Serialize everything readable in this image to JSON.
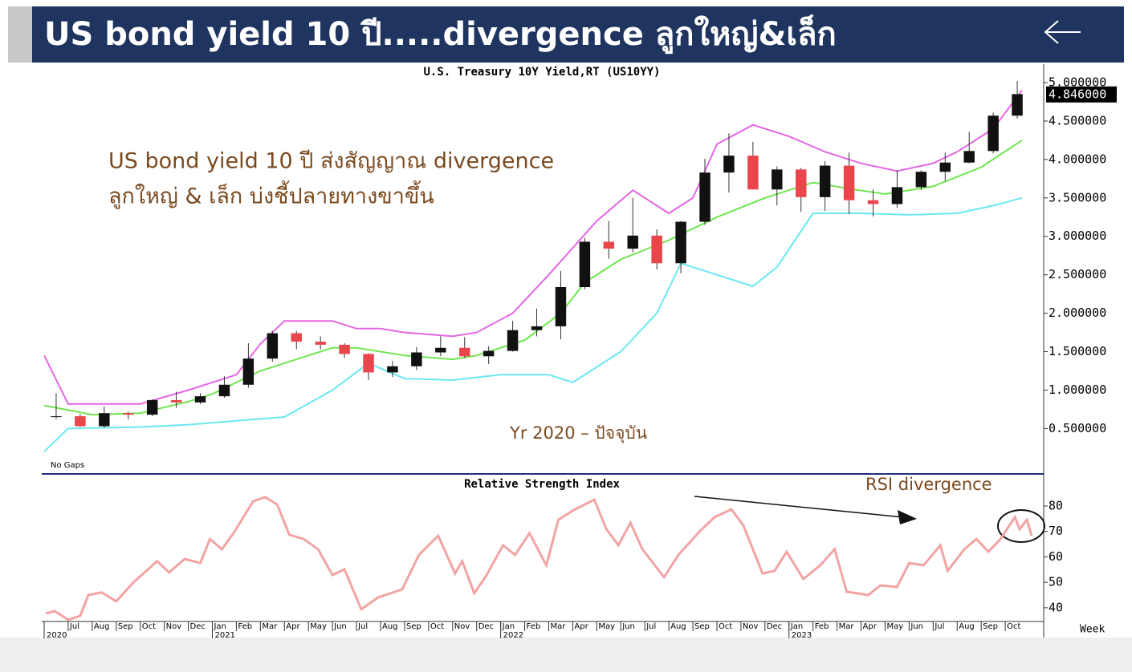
{
  "header": {
    "title": "US bond yield 10 ปี.....divergence ลูกใหญ่&เล็ก"
  },
  "chart_data": [
    {
      "type": "candlestick",
      "title": "U.S. Treasury 10Y Yield,RT (US10YY)",
      "x": [
        0.5,
        1.5,
        2.5,
        3.5,
        4.5,
        5.5,
        6.5,
        7.5,
        8.5,
        9.5,
        10.5,
        11.5,
        12.5,
        13.5,
        14.5,
        15.5,
        16.5,
        17.5,
        18.5,
        19.5,
        20.5,
        21.5,
        22.5,
        23.5,
        24.5,
        25.5,
        26.5,
        27.5,
        28.5,
        29.5,
        30.5,
        31.5,
        32.5,
        33.5,
        34.5,
        35.5,
        36.5,
        37.5,
        38.5,
        39.5,
        40.5
      ],
      "open": [
        0.65,
        0.66,
        0.53,
        0.7,
        0.68,
        0.87,
        0.84,
        0.92,
        1.07,
        1.41,
        1.74,
        1.63,
        1.59,
        1.47,
        1.23,
        1.31,
        1.49,
        1.55,
        1.44,
        1.51,
        1.78,
        1.83,
        2.34,
        2.93,
        2.84,
        3.01,
        2.65,
        3.19,
        3.83,
        4.05,
        3.61,
        3.87,
        3.51,
        3.92,
        3.47,
        3.42,
        3.64,
        3.84,
        3.96,
        4.11,
        4.57
      ],
      "high": [
        0.96,
        0.69,
        0.79,
        0.72,
        0.88,
        0.98,
        0.96,
        1.18,
        1.61,
        1.77,
        1.77,
        1.7,
        1.61,
        1.48,
        1.38,
        1.56,
        1.7,
        1.69,
        1.57,
        1.9,
        2.06,
        2.55,
        2.98,
        3.2,
        3.5,
        3.09,
        3.2,
        4.01,
        4.34,
        4.23,
        3.91,
        3.89,
        3.98,
        4.09,
        3.61,
        3.86,
        3.86,
        4.09,
        4.36,
        4.61,
        5.02
      ],
      "low": [
        0.62,
        0.52,
        0.51,
        0.62,
        0.66,
        0.77,
        0.82,
        0.9,
        1.03,
        1.37,
        1.53,
        1.53,
        1.42,
        1.13,
        1.17,
        1.26,
        1.44,
        1.42,
        1.34,
        1.5,
        1.7,
        1.66,
        2.31,
        2.71,
        2.79,
        2.57,
        2.52,
        3.15,
        3.57,
        3.61,
        3.4,
        3.32,
        3.33,
        3.29,
        3.26,
        3.37,
        3.6,
        3.72,
        3.95,
        4.08,
        4.53
      ],
      "close": [
        0.66,
        0.53,
        0.7,
        0.68,
        0.87,
        0.84,
        0.92,
        1.07,
        1.41,
        1.74,
        1.63,
        1.59,
        1.47,
        1.23,
        1.31,
        1.49,
        1.55,
        1.44,
        1.51,
        1.78,
        1.83,
        2.34,
        2.93,
        2.84,
        3.01,
        2.65,
        3.19,
        3.83,
        4.05,
        3.61,
        3.87,
        3.51,
        3.92,
        3.47,
        3.42,
        3.64,
        3.84,
        3.96,
        4.11,
        4.57,
        4.85
      ],
      "up_color": "#111111",
      "down_color": "#e8464a",
      "series": [
        {
          "color": "#e466e4",
          "x": [
            0,
            1,
            4,
            6,
            8,
            9,
            10,
            12,
            13,
            14,
            15,
            17,
            18,
            19.5,
            21,
            23,
            24.5,
            26,
            27,
            28,
            29.5,
            31,
            32.5,
            34,
            35.5,
            37,
            38,
            39.5,
            40.7
          ],
          "values": [
            1.45,
            0.82,
            0.82,
            1.0,
            1.2,
            1.6,
            1.9,
            1.9,
            1.8,
            1.8,
            1.75,
            1.7,
            1.75,
            2.0,
            2.5,
            3.2,
            3.6,
            3.3,
            3.5,
            4.2,
            4.45,
            4.3,
            4.1,
            3.95,
            3.85,
            3.95,
            4.1,
            4.4,
            4.9
          ]
        },
        {
          "color": "#6ee64e",
          "x": [
            0,
            2,
            4,
            6,
            7,
            9,
            12,
            13,
            15,
            17,
            18,
            20,
            21.5,
            22.5,
            24,
            26,
            28,
            30,
            32,
            33.5,
            35,
            37,
            39,
            40.7
          ],
          "values": [
            0.8,
            0.68,
            0.7,
            0.85,
            0.95,
            1.25,
            1.55,
            1.55,
            1.45,
            1.4,
            1.45,
            1.65,
            2.0,
            2.4,
            2.7,
            2.95,
            3.25,
            3.5,
            3.7,
            3.62,
            3.55,
            3.65,
            3.9,
            4.25
          ]
        },
        {
          "color": "#6ae8f2",
          "x": [
            0,
            1,
            4,
            6,
            8,
            10,
            12,
            13.5,
            15,
            17,
            19,
            21,
            22,
            24,
            25.5,
            26.5,
            28,
            29.5,
            30.5,
            32,
            34,
            36,
            38,
            39.5,
            40.7
          ],
          "values": [
            0.2,
            0.5,
            0.52,
            0.55,
            0.6,
            0.65,
            1.0,
            1.35,
            1.15,
            1.13,
            1.2,
            1.2,
            1.1,
            1.5,
            2.0,
            2.65,
            2.5,
            2.35,
            2.6,
            3.3,
            3.3,
            3.28,
            3.3,
            3.4,
            3.5
          ]
        }
      ],
      "last_price": {
        "value": 4.846,
        "label": "4.846000"
      },
      "xlim": [
        -0.1,
        41.6
      ],
      "ylim": [
        -0.08,
        5.24
      ],
      "yticks": [
        {
          "value": 0.5,
          "label": "0.500000"
        },
        {
          "value": 1.0,
          "label": "1.000000"
        },
        {
          "value": 1.5,
          "label": "1.500000"
        },
        {
          "value": 2.0,
          "label": "2.000000"
        },
        {
          "value": 2.5,
          "label": "2.500000"
        },
        {
          "value": 3.0,
          "label": "3.000000"
        },
        {
          "value": 3.5,
          "label": "3.500000"
        },
        {
          "value": 4.0,
          "label": "4.000000"
        },
        {
          "value": 4.5,
          "label": "4.500000"
        },
        {
          "value": 5.0,
          "label": "5.000000"
        }
      ],
      "annotations": [
        "US bond yield 10 ปี ส่งสัญญาณ divergence",
        "ลูกใหญ่ & เล็ก บ่งชี้ปลายทางขาขึ้น"
      ],
      "note": "Yr 2020 – ปัจจุบัน",
      "gaps": "No Gaps"
    },
    {
      "type": "line",
      "title": "Relative Strength Index",
      "series": [
        {
          "color": "#f2a4a4",
          "x": [
            0.07,
            0.43,
            1.0,
            1.5,
            1.84,
            2.4,
            3.0,
            3.7,
            4.7,
            5.2,
            5.85,
            6.5,
            6.9,
            7.4,
            7.9,
            8.7,
            9.2,
            9.7,
            10.2,
            10.8,
            11.4,
            12.0,
            12.5,
            13.2,
            13.9,
            14.9,
            15.6,
            16.4,
            17.1,
            17.4,
            17.9,
            18.4,
            19.1,
            19.6,
            20.2,
            20.9,
            21.4,
            22.1,
            22.9,
            23.4,
            23.9,
            24.4,
            24.9,
            25.8,
            26.4,
            27.3,
            27.9,
            28.6,
            29.1,
            29.9,
            30.4,
            30.9,
            31.6,
            32.3,
            32.9,
            33.4,
            34.3,
            34.8,
            35.5,
            36.0,
            36.6,
            37.3,
            37.6,
            38.3,
            38.8,
            39.3,
            39.8,
            40.4,
            40.6,
            40.9,
            41.1
          ],
          "values": [
            37.8,
            38.7,
            35.3,
            36.8,
            45,
            46,
            42.5,
            49.8,
            58.3,
            53.9,
            59.2,
            57.6,
            67,
            63,
            69.6,
            81.9,
            83.5,
            80.6,
            68.7,
            67,
            63,
            52.9,
            55.1,
            39.4,
            44.1,
            47.2,
            60.8,
            68.3,
            53.5,
            58.3,
            45.7,
            52.6,
            64.6,
            60.8,
            69.3,
            56.7,
            74.6,
            78.7,
            82.5,
            70.9,
            64.6,
            73.4,
            63,
            52,
            60.8,
            70.2,
            75.6,
            78.7,
            72.4,
            53.5,
            54.5,
            62,
            51.3,
            56.7,
            63,
            46.3,
            45,
            48.8,
            48.2,
            57.6,
            56.7,
            64.6,
            54.5,
            63,
            67,
            62,
            67,
            75.6,
            70.9,
            74.6,
            68.3
          ]
        }
      ],
      "xlim": [
        -0.1,
        41.6
      ],
      "ylim": [
        34.6,
        92.3
      ],
      "yticks": [
        40,
        50,
        60,
        70,
        80
      ],
      "xticks": [
        {
          "value": 1,
          "label": "Jul"
        },
        {
          "value": 2,
          "label": "Aug"
        },
        {
          "value": 3,
          "label": "Sep"
        },
        {
          "value": 4,
          "label": "Oct"
        },
        {
          "value": 5,
          "label": "Nov"
        },
        {
          "value": 6,
          "label": "Dec"
        },
        {
          "value": 7,
          "label": "Jan"
        },
        {
          "value": 8,
          "label": "Feb"
        },
        {
          "value": 9,
          "label": "Mar"
        },
        {
          "value": 10,
          "label": "Apr"
        },
        {
          "value": 11,
          "label": "May"
        },
        {
          "value": 12,
          "label": "Jun"
        },
        {
          "value": 13,
          "label": "Jul"
        },
        {
          "value": 14,
          "label": "Aug"
        },
        {
          "value": 15,
          "label": "Sep"
        },
        {
          "value": 16,
          "label": "Oct"
        },
        {
          "value": 17,
          "label": "Nov"
        },
        {
          "value": 18,
          "label": "Dec"
        },
        {
          "value": 19,
          "label": "Jan"
        },
        {
          "value": 20,
          "label": "Feb"
        },
        {
          "value": 21,
          "label": "Mar"
        },
        {
          "value": 22,
          "label": "Apr"
        },
        {
          "value": 23,
          "label": "May"
        },
        {
          "value": 24,
          "label": "Jun"
        },
        {
          "value": 25,
          "label": "Jul"
        },
        {
          "value": 26,
          "label": "Aug"
        },
        {
          "value": 27,
          "label": "Sep"
        },
        {
          "value": 28,
          "label": "Oct"
        },
        {
          "value": 29,
          "label": "Nov"
        },
        {
          "value": 30,
          "label": "Dec"
        },
        {
          "value": 31,
          "label": "Jan"
        },
        {
          "value": 32,
          "label": "Feb"
        },
        {
          "value": 33,
          "label": "Mar"
        },
        {
          "value": 34,
          "label": "Apr"
        },
        {
          "value": 35,
          "label": "May"
        },
        {
          "value": 36,
          "label": "Jun"
        },
        {
          "value": 37,
          "label": "Jul"
        },
        {
          "value": 38,
          "label": "Aug"
        },
        {
          "value": 39,
          "label": "Sep"
        },
        {
          "value": 40,
          "label": "Oct"
        }
      ],
      "year_ticks": [
        {
          "value": 0,
          "label": "2020"
        },
        {
          "value": 7,
          "label": "2021"
        },
        {
          "value": 19,
          "label": "2022"
        },
        {
          "value": 31,
          "label": "2023"
        }
      ],
      "annotation": "RSI divergence",
      "period": "Week"
    }
  ]
}
